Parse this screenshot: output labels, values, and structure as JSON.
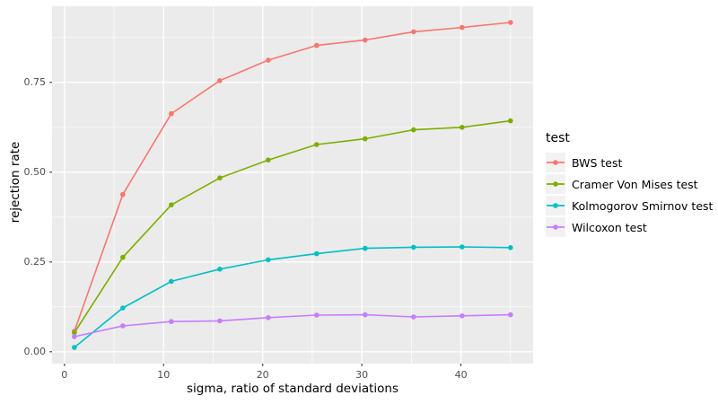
{
  "chart_data": {
    "type": "line",
    "title": "",
    "xlabel": "sigma, ratio of standard deviations",
    "ylabel": "rejection rate",
    "x": [
      1,
      5.89,
      10.78,
      15.67,
      20.56,
      25.44,
      30.33,
      35.22,
      40.11,
      45
    ],
    "series": [
      {
        "name": "BWS test",
        "color": "#F8766D",
        "values": [
          0.057,
          0.438,
          0.663,
          0.755,
          0.812,
          0.853,
          0.868,
          0.891,
          0.903,
          0.917
        ]
      },
      {
        "name": "Cramer Von Mises test",
        "color": "#7CAE00",
        "values": [
          0.053,
          0.263,
          0.409,
          0.484,
          0.534,
          0.577,
          0.593,
          0.618,
          0.625,
          0.643
        ]
      },
      {
        "name": "Kolmogorov Smirnov test",
        "color": "#00BFC4",
        "values": [
          0.012,
          0.122,
          0.196,
          0.23,
          0.256,
          0.273,
          0.288,
          0.291,
          0.292,
          0.29
        ]
      },
      {
        "name": "Wilcoxon test",
        "color": "#C77CFF",
        "values": [
          0.042,
          0.072,
          0.084,
          0.086,
          0.095,
          0.102,
          0.103,
          0.097,
          0.1,
          0.103
        ]
      }
    ],
    "xlim": [
      -1.25,
      47.28
    ],
    "ylim": [
      -0.033,
      0.962
    ],
    "x_ticks": {
      "labels": [
        "0",
        "10",
        "20",
        "30",
        "40"
      ],
      "values": [
        0,
        10,
        20,
        30,
        40
      ],
      "minor": [
        5,
        15,
        25,
        35,
        45
      ]
    },
    "y_ticks": {
      "labels": [
        "0.00",
        "0.25",
        "0.50",
        "0.75"
      ],
      "values": [
        0,
        0.25,
        0.5,
        0.75
      ],
      "minor": [
        0.125,
        0.375,
        0.625,
        0.875
      ]
    },
    "legend": {
      "title": "test",
      "position": "right"
    },
    "grid": "on",
    "colors": {
      "panel_bg": "#EBEBEB",
      "grid": "#FFFFFF",
      "legend_key_bg": "#F2F2F2",
      "tick_text": "#4D4D4D",
      "tick_mark": "#333333",
      "axis_title_text": "#000000"
    }
  }
}
